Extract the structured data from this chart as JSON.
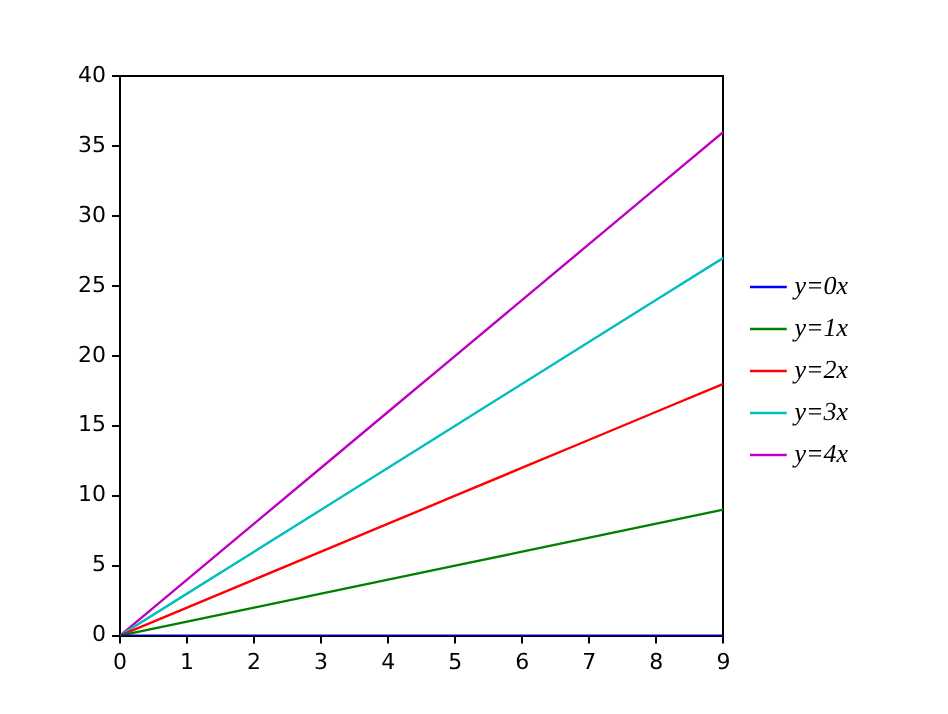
{
  "chart_data": {
    "type": "line",
    "x": [
      0,
      1,
      2,
      3,
      4,
      5,
      6,
      7,
      8,
      9
    ],
    "series": [
      {
        "name": "y=0x",
        "color": "#0000ff",
        "values": [
          0,
          0,
          0,
          0,
          0,
          0,
          0,
          0,
          0,
          0
        ]
      },
      {
        "name": "y=1x",
        "color": "#008000",
        "values": [
          0,
          1,
          2,
          3,
          4,
          5,
          6,
          7,
          8,
          9
        ]
      },
      {
        "name": "y=2x",
        "color": "#ff0000",
        "values": [
          0,
          2,
          4,
          6,
          8,
          10,
          12,
          14,
          16,
          18
        ]
      },
      {
        "name": "y=3x",
        "color": "#00bfbf",
        "values": [
          0,
          3,
          6,
          9,
          12,
          15,
          18,
          21,
          24,
          27
        ]
      },
      {
        "name": "y=4x",
        "color": "#bf00bf",
        "values": [
          0,
          4,
          8,
          12,
          16,
          20,
          24,
          28,
          32,
          36
        ]
      }
    ],
    "xlim": [
      0,
      9
    ],
    "xticks": [
      0,
      1,
      2,
      3,
      4,
      5,
      6,
      7,
      8,
      9
    ],
    "ylim": [
      0,
      40
    ],
    "yticks": [
      0,
      5,
      10,
      15,
      20,
      25,
      30,
      35,
      40
    ],
    "grid": false,
    "legend": "right",
    "marker": "none",
    "line_style": "solid"
  }
}
